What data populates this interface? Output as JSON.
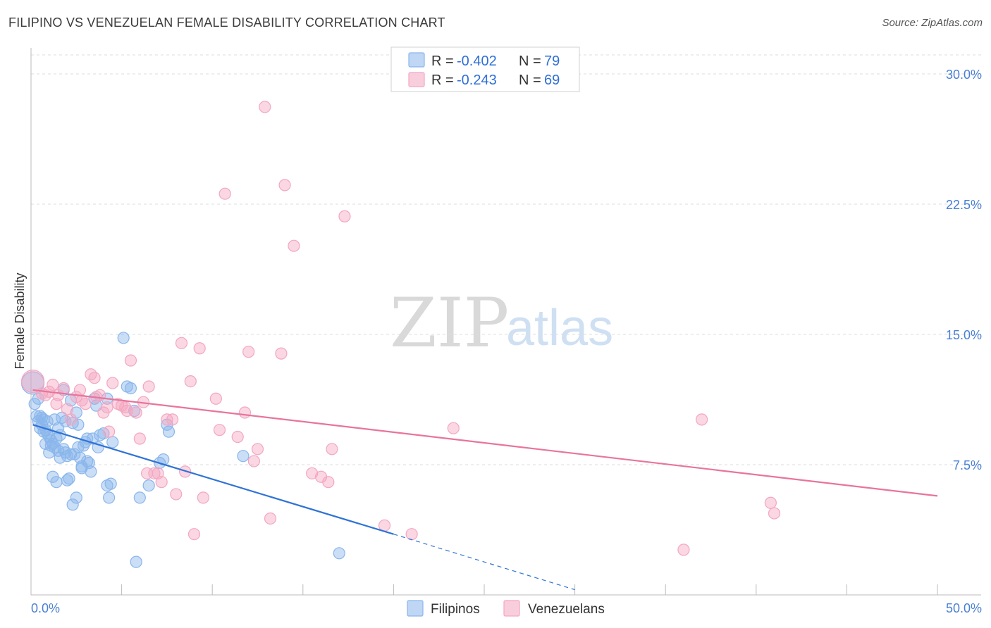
{
  "header": {
    "title": "FILIPINO VS VENEZUELAN FEMALE DISABILITY CORRELATION CHART",
    "source": "Source: ZipAtlas.com"
  },
  "watermark": {
    "zip": "ZIP",
    "atlas": "atlas"
  },
  "legend": {
    "rows": [
      {
        "r_label": "R = ",
        "r_value": "-0.402",
        "n_label": "N = ",
        "n_value": "79",
        "color": "#8ab6ec"
      },
      {
        "r_label": "R = ",
        "r_value": "-0.243",
        "n_label": "N = ",
        "n_value": "69",
        "color": "#f4a6c0"
      }
    ]
  },
  "bottom_legend": [
    {
      "label": "Filipinos",
      "color": "#8ab6ec"
    },
    {
      "label": "Venezuelans",
      "color": "#f4a6c0"
    }
  ],
  "chart_data": {
    "type": "scatter",
    "title": "FILIPINO VS VENEZUELAN FEMALE DISABILITY CORRELATION CHART",
    "xlabel": "",
    "ylabel": "Female Disability",
    "xlim": [
      0,
      50
    ],
    "ylim": [
      0,
      31.5
    ],
    "x_tick_labels": [
      "0.0%",
      "50.0%"
    ],
    "y_ticks": [
      7.5,
      15.0,
      22.5,
      30.0
    ],
    "y_tick_labels": [
      "7.5%",
      "15.0%",
      "22.5%",
      "30.0%"
    ],
    "grid": true,
    "legend_position": "top-center",
    "series": [
      {
        "name": "Filipinos",
        "color": "#8ab6ec",
        "line_color": "#2f73d6",
        "trend": {
          "x_start": 0.1,
          "y_start": 9.8,
          "x_end": 20.0,
          "y_end": 3.5,
          "dashed_to_x": 30.0,
          "dashed_to_y": 0.3
        },
        "points": [
          [
            0.1,
            12.2
          ],
          [
            0.2,
            11.0
          ],
          [
            0.3,
            10.3
          ],
          [
            0.4,
            10.0
          ],
          [
            0.5,
            9.6
          ],
          [
            0.6,
            10.2
          ],
          [
            0.7,
            9.4
          ],
          [
            0.8,
            9.5
          ],
          [
            0.9,
            10.0
          ],
          [
            1.0,
            9.1
          ],
          [
            1.1,
            8.9
          ],
          [
            1.2,
            8.7
          ],
          [
            1.3,
            8.5
          ],
          [
            1.4,
            9.0
          ],
          [
            1.5,
            8.3
          ],
          [
            1.6,
            9.2
          ],
          [
            1.7,
            10.2
          ],
          [
            1.8,
            11.8
          ],
          [
            1.9,
            8.2
          ],
          [
            2.0,
            8.0
          ],
          [
            2.2,
            11.2
          ],
          [
            2.3,
            9.9
          ],
          [
            2.5,
            10.5
          ],
          [
            2.6,
            8.5
          ],
          [
            2.7,
            7.9
          ],
          [
            2.8,
            7.3
          ],
          [
            3.0,
            8.8
          ],
          [
            3.1,
            9.0
          ],
          [
            3.2,
            7.6
          ],
          [
            3.5,
            11.3
          ],
          [
            3.6,
            10.9
          ],
          [
            3.8,
            9.2
          ],
          [
            4.2,
            11.3
          ],
          [
            4.5,
            8.8
          ],
          [
            5.1,
            14.8
          ],
          [
            5.3,
            12.0
          ],
          [
            5.5,
            11.9
          ],
          [
            5.7,
            10.6
          ],
          [
            1.0,
            8.2
          ],
          [
            1.2,
            6.8
          ],
          [
            1.4,
            6.5
          ],
          [
            2.0,
            6.6
          ],
          [
            2.3,
            5.2
          ],
          [
            2.5,
            5.6
          ],
          [
            2.8,
            7.4
          ],
          [
            3.3,
            7.1
          ],
          [
            4.2,
            6.3
          ],
          [
            4.4,
            6.4
          ],
          [
            6.0,
            5.6
          ],
          [
            6.5,
            6.3
          ],
          [
            7.1,
            7.6
          ],
          [
            7.3,
            7.8
          ],
          [
            7.5,
            9.8
          ],
          [
            7.6,
            9.4
          ],
          [
            11.7,
            8.0
          ],
          [
            17.0,
            2.4
          ],
          [
            5.8,
            1.9
          ],
          [
            4.3,
            5.6
          ],
          [
            0.8,
            8.7
          ],
          [
            1.1,
            8.6
          ],
          [
            1.6,
            7.9
          ],
          [
            2.1,
            6.7
          ],
          [
            2.4,
            8.1
          ],
          [
            2.9,
            8.6
          ],
          [
            3.4,
            9.0
          ],
          [
            1.9,
            10.0
          ],
          [
            0.6,
            9.8
          ],
          [
            0.9,
            9.3
          ],
          [
            1.3,
            10.1
          ],
          [
            1.5,
            9.6
          ],
          [
            2.6,
            9.8
          ],
          [
            3.7,
            8.5
          ],
          [
            4.0,
            9.3
          ],
          [
            0.5,
            10.3
          ],
          [
            0.7,
            10.1
          ],
          [
            1.8,
            8.4
          ],
          [
            2.2,
            8.1
          ],
          [
            3.1,
            7.7
          ],
          [
            0.4,
            11.3
          ]
        ]
      },
      {
        "name": "Venezuelans",
        "color": "#f4a6c0",
        "line_color": "#e8749c",
        "trend": {
          "x_start": 0.1,
          "y_start": 11.8,
          "x_end": 50.0,
          "y_end": 5.7
        },
        "points": [
          [
            0.1,
            12.3
          ],
          [
            0.6,
            11.6
          ],
          [
            1.0,
            11.7
          ],
          [
            1.2,
            12.1
          ],
          [
            1.5,
            11.5
          ],
          [
            1.8,
            11.9
          ],
          [
            2.2,
            10.1
          ],
          [
            2.5,
            11.4
          ],
          [
            2.7,
            11.8
          ],
          [
            3.0,
            11.0
          ],
          [
            3.3,
            12.7
          ],
          [
            3.5,
            12.5
          ],
          [
            3.8,
            11.5
          ],
          [
            4.0,
            10.5
          ],
          [
            4.3,
            9.4
          ],
          [
            4.5,
            12.2
          ],
          [
            4.8,
            11.0
          ],
          [
            5.0,
            10.9
          ],
          [
            5.3,
            10.6
          ],
          [
            5.5,
            13.5
          ],
          [
            5.8,
            10.5
          ],
          [
            6.0,
            9.0
          ],
          [
            6.2,
            11.1
          ],
          [
            6.5,
            12.0
          ],
          [
            6.8,
            7.0
          ],
          [
            7.0,
            7.0
          ],
          [
            7.2,
            6.5
          ],
          [
            7.5,
            10.1
          ],
          [
            7.8,
            10.1
          ],
          [
            8.0,
            5.8
          ],
          [
            8.3,
            14.5
          ],
          [
            8.5,
            7.1
          ],
          [
            8.8,
            12.3
          ],
          [
            9.0,
            3.5
          ],
          [
            9.3,
            14.2
          ],
          [
            9.5,
            5.6
          ],
          [
            10.2,
            11.3
          ],
          [
            10.4,
            9.5
          ],
          [
            10.7,
            23.1
          ],
          [
            11.4,
            9.1
          ],
          [
            11.8,
            10.5
          ],
          [
            12.0,
            14.0
          ],
          [
            12.3,
            7.7
          ],
          [
            12.5,
            8.4
          ],
          [
            12.9,
            28.1
          ],
          [
            13.2,
            4.4
          ],
          [
            13.8,
            13.9
          ],
          [
            14.0,
            23.6
          ],
          [
            14.5,
            20.1
          ],
          [
            15.5,
            7.0
          ],
          [
            16.0,
            6.8
          ],
          [
            16.4,
            6.5
          ],
          [
            16.6,
            8.4
          ],
          [
            17.3,
            21.8
          ],
          [
            19.5,
            4.0
          ],
          [
            21.0,
            3.5
          ],
          [
            23.3,
            9.6
          ],
          [
            37.0,
            10.1
          ],
          [
            36.0,
            2.6
          ],
          [
            40.8,
            5.3
          ],
          [
            41.0,
            4.7
          ],
          [
            0.8,
            11.5
          ],
          [
            1.4,
            11.0
          ],
          [
            2.0,
            10.7
          ],
          [
            2.8,
            11.2
          ],
          [
            3.6,
            11.4
          ],
          [
            4.2,
            10.8
          ],
          [
            5.2,
            10.8
          ],
          [
            6.4,
            7.0
          ]
        ]
      }
    ]
  }
}
